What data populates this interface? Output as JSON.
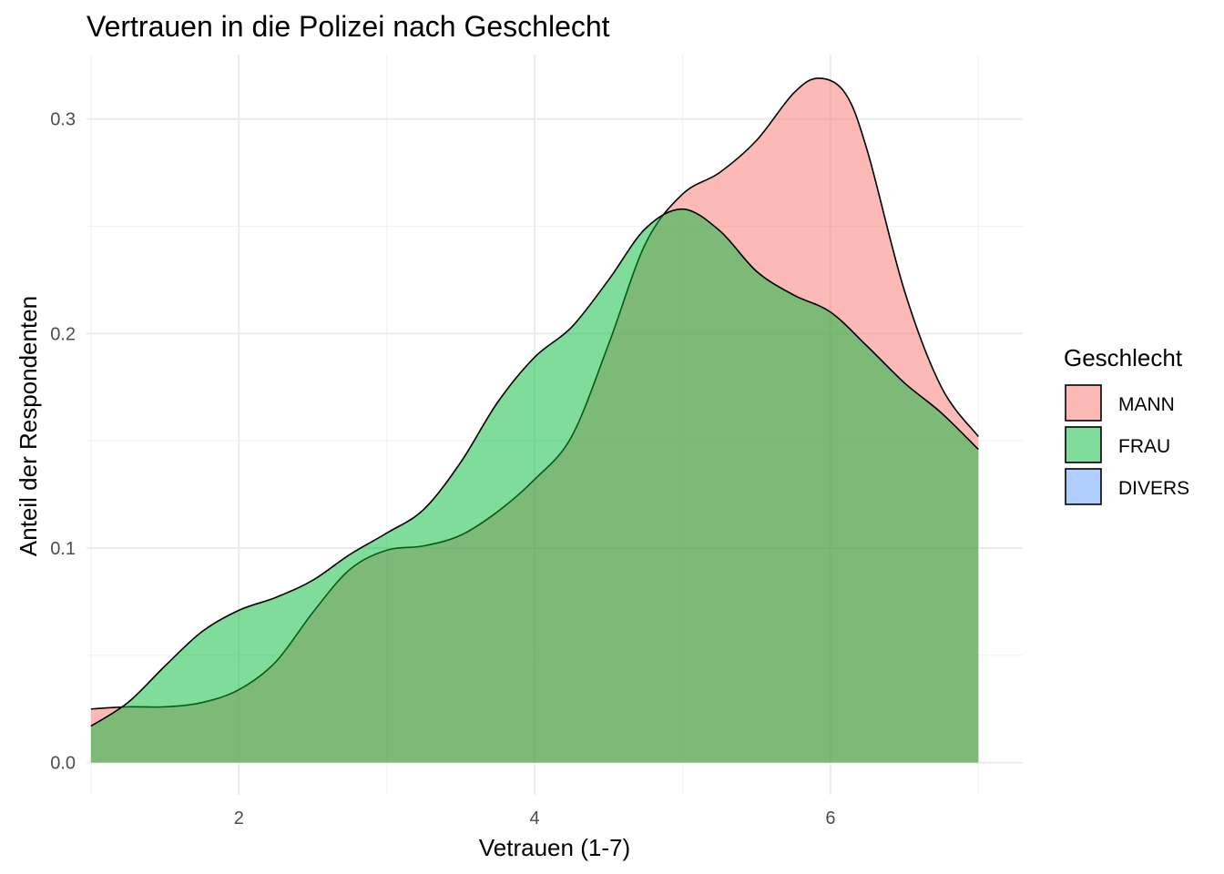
{
  "chart_data": {
    "type": "area",
    "title": "Vertrauen in die Polizei nach Geschlecht",
    "xlabel": "Vetrauen (1-7)",
    "ylabel": "Anteil der Respondenten",
    "xlim": [
      0.97,
      7.3
    ],
    "ylim": [
      -0.015,
      0.33
    ],
    "x_ticks": [
      2,
      4,
      6
    ],
    "x_tick_labels": [
      "2",
      "4",
      "6"
    ],
    "y_ticks": [
      0.0,
      0.1,
      0.2,
      0.3
    ],
    "y_tick_labels": [
      "0.0",
      "0.1",
      "0.2",
      "0.3"
    ],
    "grid": true,
    "legend": {
      "title": "Geschlecht",
      "position": "right",
      "items": [
        {
          "label": "MANN",
          "color": "#F8766D"
        },
        {
          "label": "FRAU",
          "color": "#00BA38"
        },
        {
          "label": "DIVERS",
          "color": "#619CFF"
        }
      ]
    },
    "series": [
      {
        "name": "MANN",
        "color": "#F8766D",
        "opacity": 0.5,
        "x": [
          1.0,
          1.25,
          1.5,
          1.75,
          2.0,
          2.25,
          2.5,
          2.75,
          3.0,
          3.25,
          3.5,
          3.75,
          4.0,
          4.25,
          4.5,
          4.75,
          5.0,
          5.25,
          5.5,
          5.75,
          5.92,
          6.1,
          6.25,
          6.5,
          6.75,
          7.0
        ],
        "values": [
          0.025,
          0.026,
          0.026,
          0.028,
          0.034,
          0.047,
          0.07,
          0.09,
          0.099,
          0.101,
          0.106,
          0.117,
          0.132,
          0.152,
          0.195,
          0.242,
          0.265,
          0.275,
          0.29,
          0.312,
          0.319,
          0.312,
          0.285,
          0.22,
          0.175,
          0.152
        ]
      },
      {
        "name": "FRAU",
        "color": "#00BA38",
        "opacity": 0.5,
        "x": [
          1.0,
          1.25,
          1.5,
          1.75,
          2.0,
          2.25,
          2.5,
          2.75,
          3.0,
          3.25,
          3.5,
          3.75,
          4.0,
          4.25,
          4.5,
          4.75,
          5.0,
          5.25,
          5.5,
          5.75,
          6.0,
          6.25,
          6.5,
          6.75,
          7.0
        ],
        "values": [
          0.017,
          0.028,
          0.045,
          0.061,
          0.071,
          0.077,
          0.085,
          0.097,
          0.107,
          0.118,
          0.14,
          0.168,
          0.189,
          0.203,
          0.225,
          0.249,
          0.258,
          0.248,
          0.229,
          0.218,
          0.21,
          0.194,
          0.177,
          0.163,
          0.146
        ]
      }
    ]
  }
}
